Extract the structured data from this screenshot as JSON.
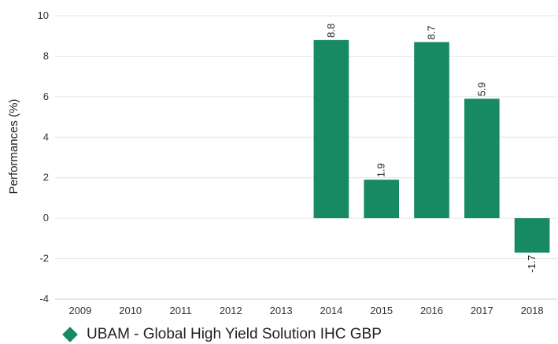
{
  "chart_data": {
    "type": "bar",
    "categories": [
      "2009",
      "2010",
      "2011",
      "2012",
      "2013",
      "2014",
      "2015",
      "2016",
      "2017",
      "2018"
    ],
    "series": [
      {
        "name": "UBAM - Global High Yield Solution IHC GBP",
        "values": [
          null,
          null,
          null,
          null,
          null,
          8.8,
          1.9,
          8.7,
          5.9,
          -1.7
        ],
        "data_labels": [
          "",
          "",
          "",
          "",
          "",
          "8.8",
          "1.9",
          "8.7",
          "5.9",
          "-1.7"
        ],
        "color": "#178a64"
      }
    ],
    "ylabel": "Performances (%)",
    "ylim": [
      -4,
      10
    ],
    "yticks": [
      "-4",
      "-2",
      "0",
      "2",
      "4",
      "6",
      "8",
      "10"
    ],
    "grid": true,
    "legend_position": "bottom-left"
  }
}
